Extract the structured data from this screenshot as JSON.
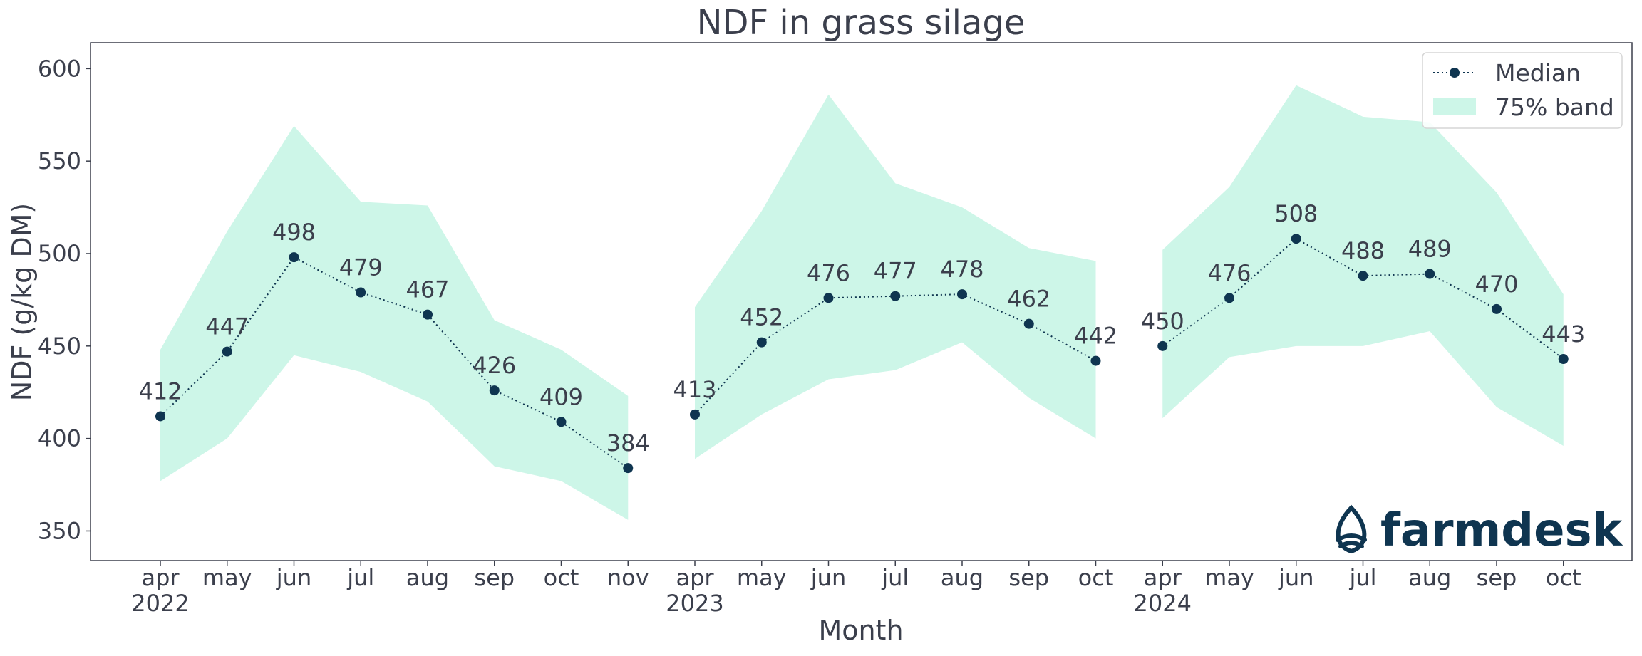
{
  "chart_data": {
    "type": "line",
    "title": "NDF in grass silage",
    "xlabel": "Month",
    "ylabel": "NDF (g/kg DM)",
    "ylim": [
      334,
      614
    ],
    "yticks": [
      350,
      400,
      450,
      500,
      550,
      600
    ],
    "grid": false,
    "legend_position": "top-right",
    "legend": [
      "Median",
      "75% band"
    ],
    "colors": {
      "median": "#0f3550",
      "band": "#cdf6e8",
      "text": "#3b3f4c"
    },
    "logo": {
      "text": "farmdesk",
      "icon": "water-drop-icon"
    },
    "segments": [
      {
        "year": "2022",
        "months": [
          "apr",
          "may",
          "jun",
          "jul",
          "aug",
          "sep",
          "oct",
          "nov"
        ],
        "median": [
          412,
          447,
          498,
          479,
          467,
          426,
          409,
          384
        ],
        "band_low": [
          377,
          400,
          445,
          436,
          420,
          385,
          377,
          356
        ],
        "band_high": [
          448,
          512,
          569,
          528,
          526,
          464,
          448,
          423
        ]
      },
      {
        "year": "2023",
        "months": [
          "apr",
          "may",
          "jun",
          "jul",
          "aug",
          "sep",
          "oct"
        ],
        "median": [
          413,
          452,
          476,
          477,
          478,
          462,
          442
        ],
        "band_low": [
          389,
          413,
          432,
          437,
          452,
          422,
          400
        ],
        "band_high": [
          471,
          523,
          586,
          538,
          525,
          503,
          496
        ]
      },
      {
        "year": "2024",
        "months": [
          "apr",
          "may",
          "jun",
          "jul",
          "aug",
          "sep",
          "oct"
        ],
        "median": [
          450,
          476,
          508,
          488,
          489,
          470,
          443
        ],
        "band_low": [
          411,
          444,
          450,
          450,
          458,
          417,
          396
        ],
        "band_high": [
          502,
          536,
          591,
          574,
          571,
          533,
          478
        ]
      }
    ]
  }
}
